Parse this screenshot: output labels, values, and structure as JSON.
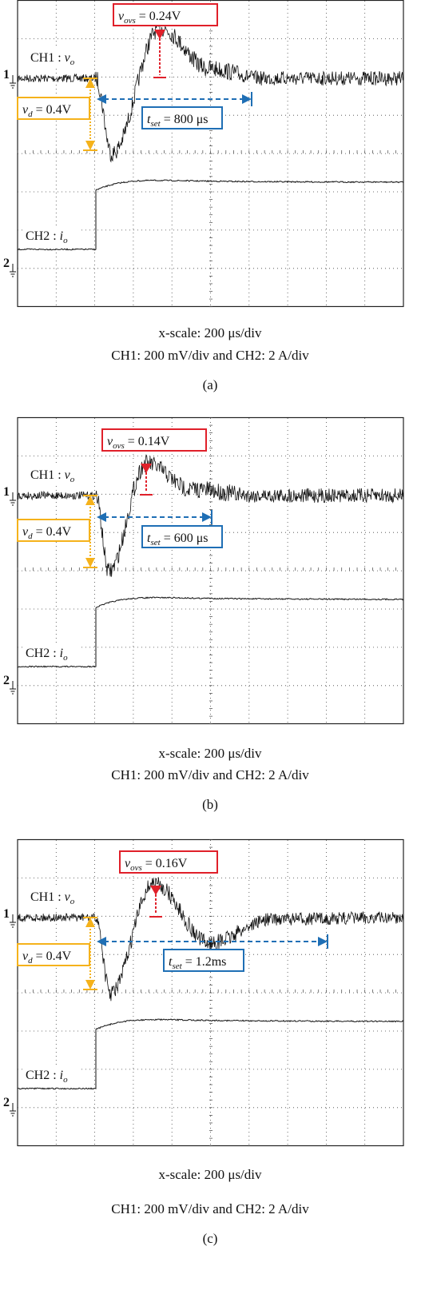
{
  "panels": [
    {
      "ch1_marker": "1",
      "ch2_marker": "2",
      "ch1": {
        "prefix": "CH1 : ",
        "var": "v",
        "sub": "o"
      },
      "ch2": {
        "prefix": "CH2 : ",
        "var": "i",
        "sub": "o"
      },
      "ovs": {
        "var": "v",
        "sub": "ovs",
        "rest": " = 0.24V"
      },
      "vd": {
        "var": "v",
        "sub": "d",
        "rest": " = 0.4V"
      },
      "tset": {
        "var": "t",
        "sub": "set",
        "rest": " = 800 μs"
      },
      "caption": [
        "x-scale: 200 μs/div",
        "CH1: 200 mV/div and CH2: 2 A/div"
      ],
      "tag": "(a)"
    },
    {
      "ch1_marker": "1",
      "ch2_marker": "2",
      "ch1": {
        "prefix": "CH1 : ",
        "var": "v",
        "sub": "o"
      },
      "ch2": {
        "prefix": "CH2 : ",
        "var": "i",
        "sub": "o"
      },
      "ovs": {
        "var": "v",
        "sub": "ovs",
        "rest": " = 0.14V"
      },
      "vd": {
        "var": "v",
        "sub": "d",
        "rest": " = 0.4V"
      },
      "tset": {
        "var": "t",
        "sub": "set",
        "rest": " = 600 μs"
      },
      "caption": [
        "x-scale: 200 μs/div",
        "CH1: 200 mV/div and CH2: 2 A/div"
      ],
      "tag": "(b)"
    },
    {
      "ch1_marker": "1",
      "ch2_marker": "2",
      "ch1": {
        "prefix": "CH1 : ",
        "var": "v",
        "sub": "o"
      },
      "ch2": {
        "prefix": "CH2 : ",
        "var": "i",
        "sub": "o"
      },
      "ovs": {
        "var": "v",
        "sub": "ovs",
        "rest": " = 0.16V"
      },
      "vd": {
        "var": "v",
        "sub": "d",
        "rest": " = 0.4V"
      },
      "tset": {
        "var": "t",
        "sub": "set",
        "rest": " = 1.2ms"
      },
      "caption": [
        "x-scale: 200 μs/div",
        "CH1: 200 mV/div and CH2: 2 A/div"
      ],
      "tag": "(c)"
    }
  ]
}
